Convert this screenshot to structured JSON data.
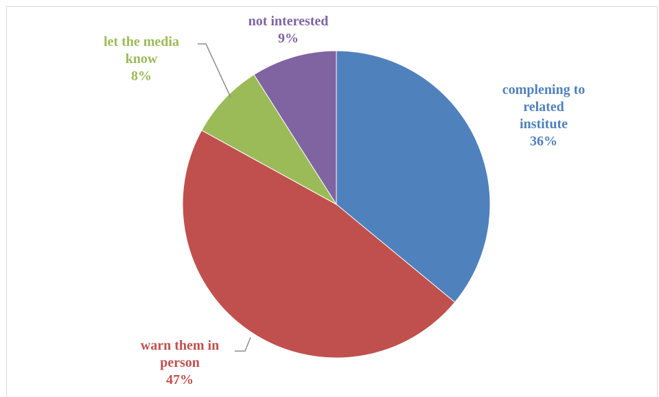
{
  "chart_data": {
    "type": "pie",
    "title": "",
    "slices": [
      {
        "label_lines": [
          "complening to",
          "related",
          "institute"
        ],
        "value": 36,
        "pct_label": "36%",
        "color": "#4f81bd"
      },
      {
        "label_lines": [
          "warn them in",
          "person"
        ],
        "value": 47,
        "pct_label": "47%",
        "color": "#c0504d"
      },
      {
        "label_lines": [
          "let the media",
          "know"
        ],
        "value": 8,
        "pct_label": "8%",
        "color": "#9bbb59"
      },
      {
        "label_lines": [
          "not interested"
        ],
        "value": 9,
        "pct_label": "9%",
        "color": "#8064a2"
      }
    ],
    "start_angle": "12 o'clock",
    "direction": "clockwise",
    "legend": "none",
    "data_labels": "category name and percentage, outside with leader lines"
  }
}
